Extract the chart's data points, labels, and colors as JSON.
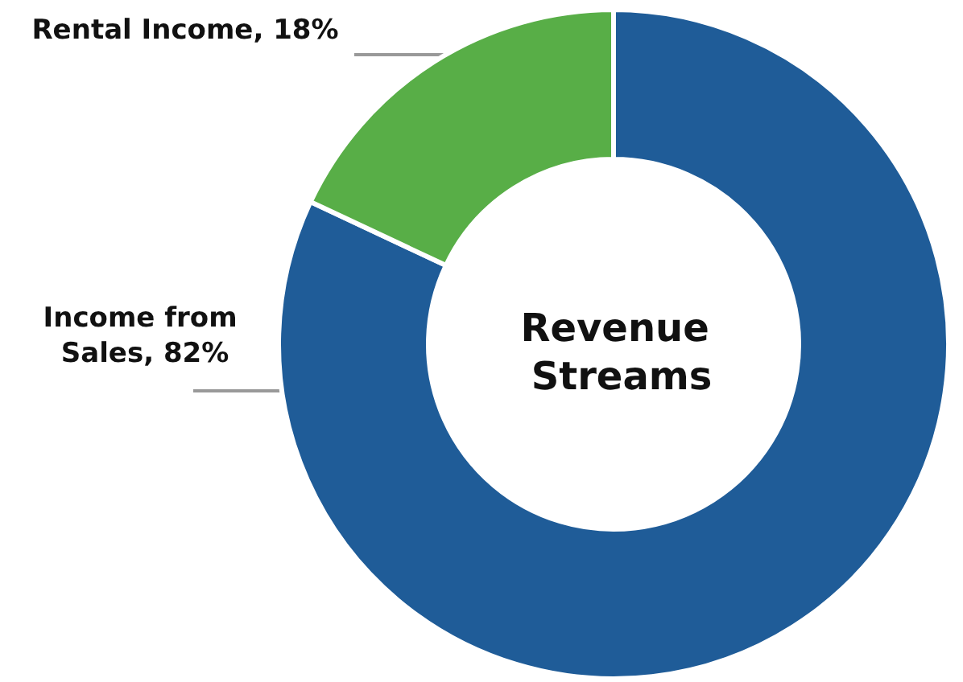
{
  "chart_data": {
    "type": "donut",
    "title": "Revenue Streams",
    "categories": [
      "Income from Sales",
      "Rental Income"
    ],
    "values": [
      82,
      18
    ],
    "value_labels": [
      "82%",
      "18%"
    ],
    "colors": [
      "#1f5c98",
      "#58ae47"
    ],
    "legend": false
  }
}
